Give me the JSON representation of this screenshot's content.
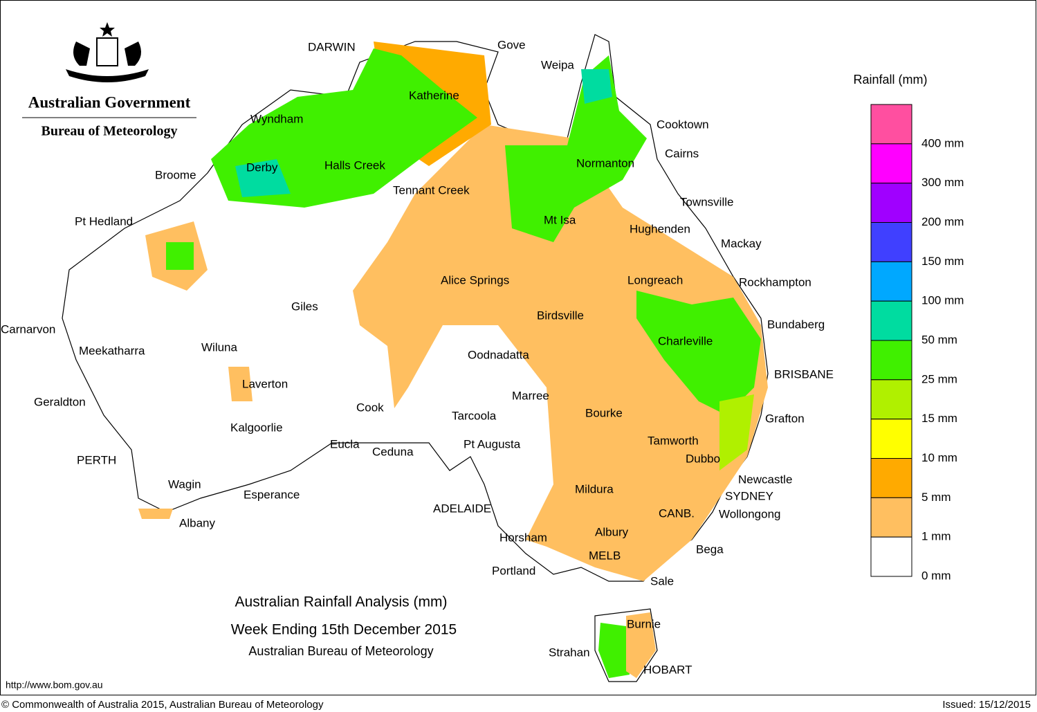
{
  "header": {
    "government": "Australian Government",
    "bureau": "Bureau of Meteorology"
  },
  "title": {
    "line1": "Australian Rainfall Analysis (mm)",
    "line2": "Week Ending 15th December 2015",
    "line3": "Australian Bureau of Meteorology"
  },
  "legend": {
    "title": "Rainfall (mm)",
    "colors": [
      "#ff4fa0",
      "#ff00ff",
      "#a000ff",
      "#4040ff",
      "#00a8ff",
      "#00dca0",
      "#40f000",
      "#b0f000",
      "#ffff00",
      "#ffaa00",
      "#ffbf60",
      "#ffffff"
    ],
    "labels": [
      "400 mm",
      "300 mm",
      "200 mm",
      "150 mm",
      "100 mm",
      "50 mm",
      "25 mm",
      "15 mm",
      "10 mm",
      "5 mm",
      "1 mm",
      "0 mm"
    ]
  },
  "places": [
    "DARWIN",
    "Gove",
    "Weipa",
    "Katherine",
    "Wyndham",
    "Cooktown",
    "Cairns",
    "Derby",
    "Halls Creek",
    "Normanton",
    "Broome",
    "Tennant Creek",
    "Townsville",
    "Pt Hedland",
    "Mt Isa",
    "Hughenden",
    "Mackay",
    "Alice Springs",
    "Longreach",
    "Rockhampton",
    "Giles",
    "Birdsville",
    "Bundaberg",
    "Carnarvon",
    "Charleville",
    "Wiluna",
    "Meekatharra",
    "Oodnadatta",
    "BRISBANE",
    "Laverton",
    "Marree",
    "Geraldton",
    "Cook",
    "Bourke",
    "Tarcoola",
    "Grafton",
    "Kalgoorlie",
    "Eucla",
    "Pt Augusta",
    "Tamworth",
    "Ceduna",
    "PERTH",
    "Dubbo",
    "Newcastle",
    "Wagin",
    "Mildura",
    "Esperance",
    "SYDNEY",
    "ADELAIDE",
    "CANB.",
    "Wollongong",
    "Albany",
    "Albury",
    "Horsham",
    "Bega",
    "MELB",
    "Portland",
    "Sale",
    "Burnie",
    "Strahan",
    "HOBART"
  ],
  "footer": {
    "url": "http://www.bom.gov.au",
    "copyright": "© Commonwealth of Australia 2015, Australian Bureau of Meteorology",
    "issued": "Issued: 15/12/2015"
  }
}
